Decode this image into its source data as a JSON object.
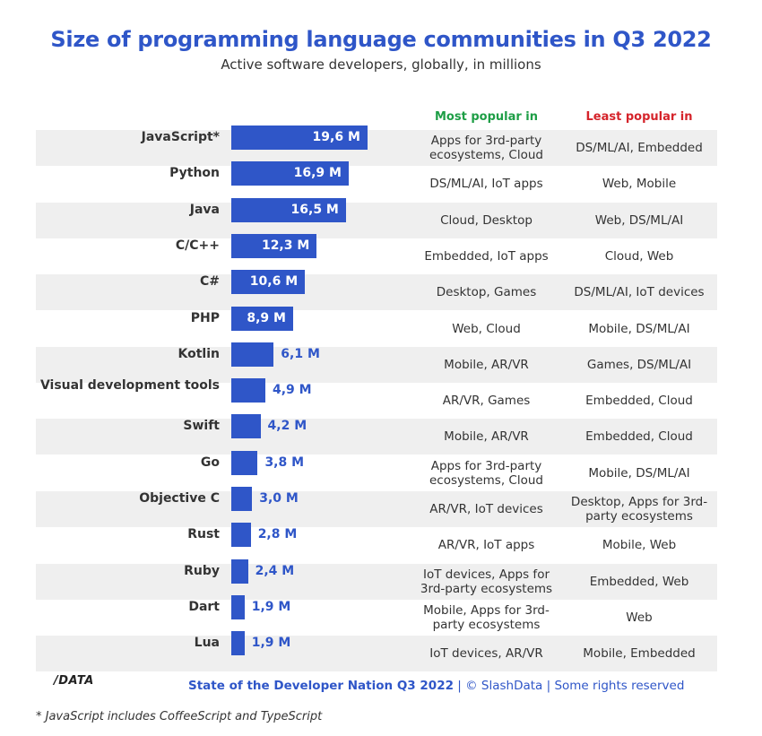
{
  "header": {
    "title": "Size of programming language communities in Q3 2022",
    "subtitle": "Active software developers, globally, in millions",
    "most_popular_label": "Most popular in",
    "least_popular_label": "Least popular in"
  },
  "chart_data": {
    "type": "bar",
    "orientation": "horizontal",
    "title": "Size of programming language communities in Q3 2022",
    "subtitle": "Active software developers, globally, in millions",
    "unit": "M",
    "categories": [
      "JavaScript*",
      "Python",
      "Java",
      "C/C++",
      "C#",
      "PHP",
      "Kotlin",
      "Visual development tools",
      "Swift",
      "Go",
      "Objective C",
      "Rust",
      "Ruby",
      "Dart",
      "Lua"
    ],
    "values": [
      19.6,
      16.9,
      16.5,
      12.3,
      10.6,
      8.9,
      6.1,
      4.9,
      4.2,
      3.8,
      3.0,
      2.8,
      2.4,
      1.9,
      1.9
    ],
    "value_labels": [
      "19,6 M",
      "16,9 M",
      "16,5 M",
      "12,3 M",
      "10,6 M",
      "8,9 M",
      "6,1 M",
      "4,9 M",
      "4,2 M",
      "3,8 M",
      "3,0 M",
      "2,8 M",
      "2,4 M",
      "1,9 M",
      "1,9 M"
    ],
    "bar_color": "#2f56c8",
    "grid": false
  },
  "table": {
    "most_popular": [
      "Apps for 3rd-party ecosystems, Cloud",
      "DS/ML/AI, IoT apps",
      "Cloud, Desktop",
      "Embedded, IoT apps",
      "Desktop, Games",
      "Web, Cloud",
      "Mobile, AR/VR",
      "AR/VR, Games",
      "Mobile, AR/VR",
      "Apps for 3rd-party ecosystems, Cloud",
      "AR/VR, IoT devices",
      "AR/VR, IoT apps",
      "IoT devices, Apps for 3rd-party ecosystems",
      "Mobile, Apps for 3rd-party ecosystems",
      "IoT devices, AR/VR"
    ],
    "least_popular": [
      "DS/ML/AI, Embedded",
      "Web, Mobile",
      "Web, DS/ML/AI",
      "Cloud, Web",
      "DS/ML/AI, IoT devices",
      "Mobile, DS/ML/AI",
      "Games, DS/ML/AI",
      "Embedded, Cloud",
      "Embedded, Cloud",
      "Mobile, DS/ML/AI",
      "Desktop, Apps for 3rd-party ecosystems",
      "Mobile, Web",
      "Embedded, Web",
      "Web",
      "Mobile, Embedded"
    ]
  },
  "footer": {
    "logo": "/DATA",
    "source_bold": "State of the Developer Nation Q3 2022",
    "source_rest": " | © SlashData | Some rights reserved",
    "footnote": "* JavaScript includes CoffeeScript and TypeScript"
  },
  "colors": {
    "brand": "#2f56c8",
    "most_popular": "#1e9e46",
    "least_popular": "#d5232a",
    "stripe": "#efefef"
  }
}
